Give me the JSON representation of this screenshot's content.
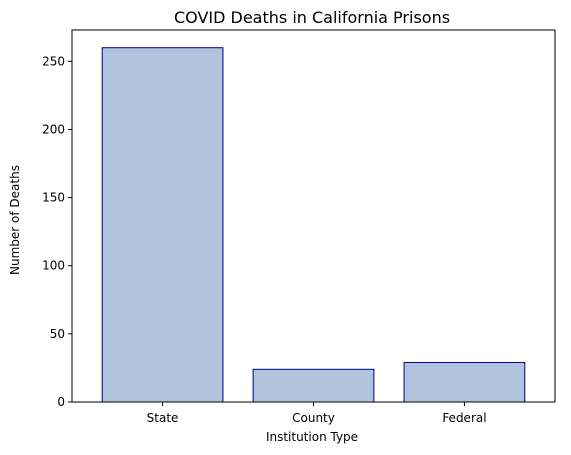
{
  "chart_data": {
    "type": "bar",
    "title": "COVID Deaths in California Prisons",
    "xlabel": "Institution Type",
    "ylabel": "Number of Deaths",
    "categories": [
      "State",
      "County",
      "Federal"
    ],
    "values": [
      260,
      24,
      29
    ],
    "ylim": [
      0,
      273
    ],
    "yticks": [
      0,
      50,
      100,
      150,
      200,
      250
    ],
    "grid": false,
    "legend": "none",
    "colors": {
      "bar_fill": "#b0c4de",
      "bar_edge": "#00008b",
      "axis": "#000000"
    }
  }
}
